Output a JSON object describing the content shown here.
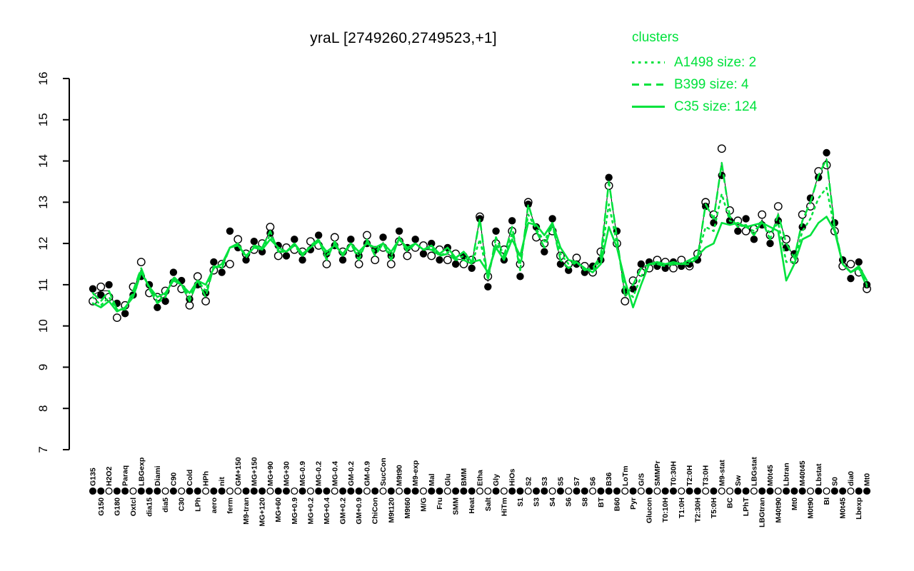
{
  "title": "yraL [2749260,2749523,+1]",
  "legend": {
    "header": "clusters",
    "items": [
      {
        "label": "A1498 size: 2",
        "style": "dotted"
      },
      {
        "label": "B399 size: 4",
        "style": "dashed"
      },
      {
        "label": "C35 size: 124",
        "style": "solid"
      }
    ]
  },
  "colors": {
    "cluster_green": "#00e23c",
    "point_black": "#000000",
    "open_point_fill": "#ffffff"
  },
  "chart_data": {
    "type": "line",
    "title": "yraL [2749260,2749523,+1]",
    "xlabel": "",
    "ylabel": "",
    "ylim": [
      7,
      16
    ],
    "yticks": [
      7,
      8,
      9,
      10,
      11,
      12,
      13,
      14,
      15,
      16
    ],
    "grid": false,
    "legend_position": "top-right",
    "categories": [
      "G135",
      "G150",
      "H2O2",
      "G180",
      "Paraq",
      "Oxtcl",
      "LBGexp",
      "dia15",
      "Diami",
      "dia5",
      "C90",
      "C30",
      "Cold",
      "LPh",
      "HPh",
      "aero",
      "nit",
      "ferm",
      "GM+150",
      "M9-tran",
      "MG+150",
      "MG+120",
      "MG+90",
      "MG+60",
      "MG+30",
      "MG+0.9",
      "MG-0.9",
      "MG+0.2",
      "MG-0.2",
      "MG+0.4",
      "MG-0.4",
      "GM+0.2",
      "GM-0.2",
      "GM+0.9",
      "GM-0.9",
      "ChiCon",
      "SucCon",
      "M9t120",
      "M9t90",
      "M9t60",
      "M9-exp",
      "M/G",
      "Mal",
      "Fru",
      "Glu",
      "SMM",
      "BMM",
      "Heat",
      "Etha",
      "Salt",
      "Gly",
      "HiTm",
      "HiOs",
      "S1",
      "S2",
      "S3",
      "S3",
      "S4",
      "S5",
      "S6",
      "S7",
      "S8",
      "S6",
      "BT",
      "B36",
      "B60",
      "LoTm",
      "Pyr",
      "G/S",
      "Glucon",
      "SMMPr",
      "T0:10H",
      "T0:30H",
      "T1:0H",
      "T2:0H",
      "T2:30H",
      "T3:0H",
      "T5:0H",
      "M9-stat",
      "BC",
      "Sw",
      "LPhT",
      "LBGstat",
      "LBGtran",
      "M0t45",
      "M40t90",
      "Lbtran",
      "Mt0",
      "M40t45",
      "M0t90",
      "Lbstat",
      "BI",
      "S0",
      "M0t45",
      "dia0",
      "Lbexp",
      "Mt0"
    ],
    "bottom_marker_pattern": "1101101110101101100111011010110111010101101101110010110110101101110101011011010011011011101011011",
    "series": [
      {
        "name": "gene filled replicates",
        "role": "points-filled",
        "values": [
          10.9,
          10.75,
          11.0,
          10.55,
          10.3,
          10.75,
          11.2,
          11.0,
          10.45,
          10.6,
          11.3,
          11.1,
          10.65,
          11.0,
          10.8,
          11.55,
          11.3,
          12.3,
          11.9,
          11.6,
          12.05,
          11.8,
          12.25,
          11.95,
          11.7,
          12.1,
          11.6,
          11.85,
          12.2,
          11.75,
          11.95,
          11.6,
          12.1,
          11.7,
          12.0,
          11.85,
          12.15,
          11.7,
          12.3,
          11.9,
          12.1,
          11.75,
          12.0,
          11.6,
          11.9,
          11.5,
          11.7,
          11.4,
          12.6,
          10.95,
          12.3,
          11.6,
          12.55,
          11.2,
          12.95,
          12.4,
          11.8,
          12.6,
          11.5,
          11.35,
          11.5,
          11.3,
          11.45,
          11.6,
          13.6,
          12.3,
          10.85,
          10.9,
          11.5,
          11.55,
          11.45,
          11.4,
          11.55,
          11.45,
          11.5,
          11.6,
          12.9,
          12.5,
          13.65,
          12.55,
          12.3,
          12.6,
          12.1,
          12.45,
          12.0,
          12.55,
          11.9,
          11.75,
          12.4,
          13.1,
          13.6,
          14.2,
          12.5,
          11.6,
          11.15,
          11.55,
          11.0
        ]
      },
      {
        "name": "gene open replicates",
        "role": "points-open",
        "values": [
          10.6,
          10.95,
          10.7,
          10.2,
          10.5,
          10.95,
          11.55,
          10.8,
          10.7,
          10.85,
          11.05,
          10.9,
          10.5,
          11.2,
          10.6,
          11.35,
          11.5,
          11.5,
          12.1,
          11.75,
          11.85,
          12.0,
          12.4,
          11.7,
          11.9,
          11.85,
          11.8,
          12.05,
          11.95,
          11.5,
          12.15,
          11.8,
          11.9,
          11.5,
          12.2,
          11.6,
          11.9,
          11.5,
          12.05,
          11.7,
          11.9,
          11.95,
          11.7,
          11.85,
          11.6,
          11.75,
          11.5,
          11.6,
          12.65,
          11.2,
          12.0,
          11.85,
          12.3,
          11.5,
          13.0,
          12.15,
          12.0,
          12.3,
          11.7,
          11.5,
          11.65,
          11.45,
          11.3,
          11.8,
          13.4,
          12.0,
          10.6,
          11.1,
          11.3,
          11.4,
          11.6,
          11.55,
          11.4,
          11.6,
          11.45,
          11.75,
          13.0,
          12.7,
          14.3,
          12.8,
          12.55,
          12.3,
          12.35,
          12.7,
          12.2,
          12.9,
          12.1,
          11.6,
          12.7,
          12.9,
          13.75,
          13.9,
          12.3,
          11.45,
          11.5,
          11.3,
          10.9
        ]
      },
      {
        "name": "A1498",
        "role": "line-dotted",
        "values": [
          10.7,
          10.5,
          10.7,
          10.4,
          10.4,
          10.8,
          11.35,
          10.9,
          10.6,
          10.75,
          11.15,
          11.0,
          10.7,
          11.1,
          10.85,
          11.4,
          11.45,
          11.9,
          12.0,
          11.7,
          11.9,
          11.9,
          12.2,
          11.85,
          11.8,
          12.0,
          11.7,
          11.9,
          12.1,
          11.7,
          12.0,
          11.7,
          12.0,
          11.7,
          12.05,
          11.8,
          12.0,
          11.7,
          12.1,
          11.85,
          12.0,
          11.85,
          11.9,
          11.7,
          11.8,
          11.6,
          11.7,
          11.5,
          12.1,
          11.2,
          12.0,
          11.65,
          12.25,
          11.5,
          12.7,
          12.35,
          12.05,
          12.45,
          11.75,
          11.5,
          11.55,
          11.4,
          11.35,
          11.6,
          12.95,
          12.0,
          10.9,
          10.7,
          11.2,
          11.5,
          11.5,
          11.5,
          11.5,
          11.5,
          11.55,
          11.7,
          12.4,
          12.3,
          13.2,
          12.55,
          12.45,
          12.4,
          12.3,
          12.5,
          12.25,
          12.5,
          11.55,
          11.55,
          12.3,
          12.6,
          13.1,
          13.35,
          12.35,
          11.5,
          11.3,
          11.4,
          11.0
        ]
      },
      {
        "name": "B399",
        "role": "line-dashed",
        "values": [
          10.8,
          10.6,
          10.85,
          10.4,
          10.4,
          10.85,
          11.4,
          10.9,
          10.55,
          10.7,
          11.2,
          11.0,
          10.6,
          11.1,
          10.7,
          11.45,
          11.4,
          11.9,
          12.0,
          11.65,
          11.95,
          11.9,
          12.3,
          11.8,
          11.8,
          11.95,
          11.7,
          11.95,
          12.1,
          11.6,
          12.05,
          11.7,
          12.0,
          11.6,
          12.1,
          11.7,
          12.0,
          11.6,
          12.15,
          11.8,
          12.0,
          11.85,
          11.85,
          11.7,
          11.75,
          11.6,
          11.6,
          11.5,
          12.6,
          11.1,
          12.15,
          11.7,
          12.4,
          11.35,
          12.95,
          12.3,
          11.9,
          12.45,
          11.6,
          11.4,
          11.55,
          11.35,
          11.4,
          11.7,
          13.5,
          12.15,
          10.7,
          11.0,
          11.4,
          11.5,
          11.5,
          11.45,
          11.5,
          11.5,
          11.5,
          11.65,
          12.95,
          12.6,
          13.95,
          12.65,
          12.4,
          12.45,
          12.2,
          12.55,
          12.1,
          12.7,
          12.0,
          11.65,
          12.55,
          13.0,
          13.65,
          14.05,
          12.4,
          11.5,
          11.3,
          11.4,
          10.95
        ]
      },
      {
        "name": "C35",
        "role": "line-solid",
        "values": [
          10.55,
          10.45,
          10.6,
          10.35,
          10.45,
          10.7,
          11.3,
          10.95,
          10.7,
          10.8,
          11.1,
          11.0,
          10.8,
          11.1,
          11.0,
          11.4,
          11.5,
          11.9,
          11.95,
          11.7,
          11.9,
          11.85,
          12.1,
          11.9,
          11.8,
          12.0,
          11.75,
          11.9,
          12.05,
          11.8,
          11.95,
          11.75,
          12.0,
          11.8,
          12.0,
          11.9,
          12.0,
          11.8,
          12.1,
          11.9,
          12.0,
          11.85,
          11.95,
          11.75,
          11.9,
          11.65,
          11.8,
          11.55,
          11.6,
          11.3,
          11.9,
          11.6,
          12.1,
          11.7,
          12.5,
          12.45,
          12.2,
          12.5,
          11.9,
          11.6,
          11.55,
          11.4,
          11.3,
          11.5,
          12.4,
          11.9,
          11.1,
          10.45,
          11.0,
          11.5,
          11.55,
          11.5,
          11.55,
          11.5,
          11.6,
          11.7,
          11.9,
          12.0,
          12.5,
          12.45,
          12.5,
          12.4,
          12.45,
          12.5,
          12.4,
          12.3,
          11.1,
          11.5,
          12.1,
          12.2,
          12.5,
          12.65,
          12.3,
          11.5,
          11.3,
          11.45,
          11.1
        ]
      }
    ]
  }
}
